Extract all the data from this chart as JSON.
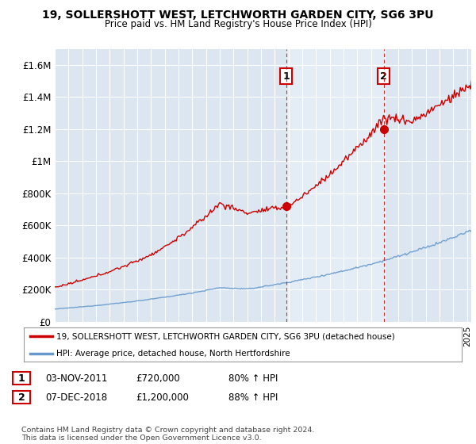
{
  "title": "19, SOLLERSHOTT WEST, LETCHWORTH GARDEN CITY, SG6 3PU",
  "subtitle": "Price paid vs. HM Land Registry's House Price Index (HPI)",
  "ylim": [
    0,
    1700000
  ],
  "yticks": [
    0,
    200000,
    400000,
    600000,
    800000,
    1000000,
    1200000,
    1400000,
    1600000
  ],
  "ytick_labels": [
    "£0",
    "£200K",
    "£400K",
    "£600K",
    "£800K",
    "£1M",
    "£1.2M",
    "£1.4M",
    "£1.6M"
  ],
  "background_color": "#dce6f1",
  "shade_color": "#ccd9ed",
  "grid_color": "#ffffff",
  "hpi_color": "#6699cc",
  "price_color": "#cc0000",
  "sale1_x": 2011.84,
  "sale1_y": 720000,
  "sale2_x": 2018.93,
  "sale2_y": 1200000,
  "xmin": 1995,
  "xmax": 2025.3,
  "legend_label1": "19, SOLLERSHOTT WEST, LETCHWORTH GARDEN CITY, SG6 3PU (detached house)",
  "legend_label2": "HPI: Average price, detached house, North Hertfordshire",
  "note1_label": "1",
  "note1_date": "03-NOV-2011",
  "note1_price": "£720,000",
  "note1_hpi": "80% ↑ HPI",
  "note2_label": "2",
  "note2_date": "07-DEC-2018",
  "note2_price": "£1,200,000",
  "note2_hpi": "88% ↑ HPI",
  "footer": "Contains HM Land Registry data © Crown copyright and database right 2024.\nThis data is licensed under the Open Government Licence v3.0."
}
